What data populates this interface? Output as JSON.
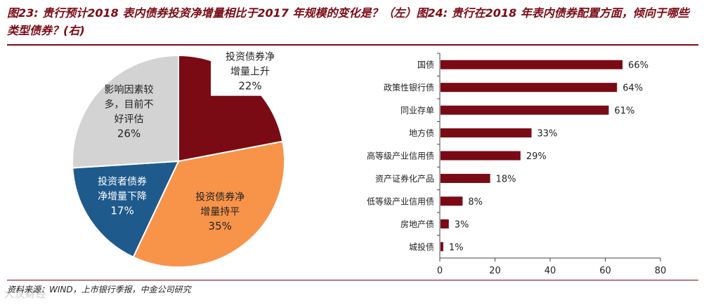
{
  "header": {
    "title": "图23: 贵行预计2018 表内债券投资净增量相比于2017 年规模的变化是？（左）图24: 贵行在2018 年表内债券配置方面，倾向于哪些类型债券？(右)"
  },
  "source": "资料来源：WIND，上市银行季报，中金公司研究",
  "watermark": "大汉财经",
  "chart_data": [
    {
      "type": "pie",
      "slices": [
        {
          "label": "投资债券净增量上升",
          "lines": [
            "投资债券净",
            "增量上升"
          ],
          "value": 22,
          "value_label": "22%",
          "color": "#7a0a14",
          "text_color": "#222222",
          "label_bg": true
        },
        {
          "label": "投资债券净增量持平",
          "lines": [
            "投资债券净",
            "增量持平"
          ],
          "value": 35,
          "value_label": "35%",
          "color": "#f7944a",
          "text_color": "#222222",
          "label_bg": false
        },
        {
          "label": "投资者债券净增量下降",
          "lines": [
            "投资者债券",
            "净增量下降"
          ],
          "value": 17,
          "value_label": "17%",
          "color": "#1f5a8c",
          "text_color": "#ffffff",
          "label_bg": false
        },
        {
          "label": "影响因素较多，目前不好评估",
          "lines": [
            "影响因素较",
            "多，目前不",
            "好评估"
          ],
          "value": 26,
          "value_label": "26%",
          "color": "#d3d3d3",
          "text_color": "#222222",
          "label_bg": false
        }
      ]
    },
    {
      "type": "bar",
      "orientation": "horizontal",
      "categories": [
        "国债",
        "政策性银行债",
        "同业存单",
        "地方债",
        "高等级产业信用债",
        "资产证券化产品",
        "低等级产业信用债",
        "房地产债",
        "城投债"
      ],
      "values": [
        66,
        64,
        61,
        33,
        29,
        18,
        8,
        3,
        1
      ],
      "value_labels": [
        "66%",
        "64%",
        "61%",
        "33%",
        "29%",
        "18%",
        "8%",
        "3%",
        "1%"
      ],
      "xlim": [
        0,
        80
      ],
      "xticks": [
        0,
        20,
        40,
        60,
        80
      ],
      "bar_color": "#7a0a14",
      "grid": false
    }
  ]
}
